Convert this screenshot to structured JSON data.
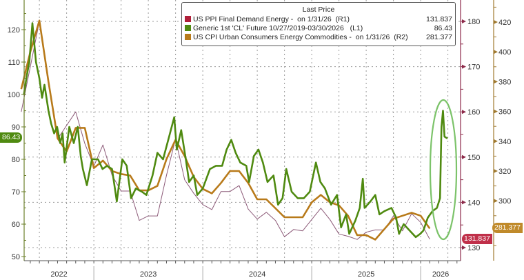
{
  "chart_data": {
    "type": "line",
    "legend": {
      "title": "Last Price",
      "placement": "top-right",
      "entries": [
        {
          "label": "US PPI Final Demand Energy -  on 1/31/26  (R1)",
          "value": "131.837",
          "color": "#b0203a"
        },
        {
          "label": "Generic 1st 'CL' Future 10/27/2019-03/30/2026   (L1)",
          "value": "86.43",
          "color": "#4f8a10"
        },
        {
          "label": "US CPI Urban Consumers Energy Commodities -  on 1/31/26  (R2)",
          "value": "281.377",
          "color": "#b87a1a"
        }
      ]
    },
    "x_axis": {
      "ticks": [
        "2022",
        "2023",
        "2024",
        "2025",
        "2026"
      ],
      "range": [
        "2022-05",
        "2026-04"
      ]
    },
    "axes": {
      "L1": {
        "ticks": [
          50,
          60,
          70,
          80,
          90,
          100,
          110,
          120
        ],
        "range": [
          48,
          127
        ],
        "color": "#6b7f2a"
      },
      "R1": {
        "ticks": [
          130,
          140,
          150,
          160,
          170,
          180
        ],
        "range": [
          127,
          185
        ],
        "color": "#8c2a4a"
      },
      "R2": {
        "ticks": [
          300,
          320,
          340,
          360,
          380,
          400,
          420
        ],
        "range": [
          266,
          440
        ],
        "color": "#a07a30"
      }
    },
    "grid": true,
    "last_value_tags": {
      "L1": "86.43",
      "R1": "131.837",
      "R2": "281.377"
    },
    "series": [
      {
        "name": "Generic 1st 'CL' Future",
        "axis": "L1",
        "color": "#4f8a10",
        "points": [
          [
            "2022-05-10",
            100
          ],
          [
            "2022-05-20",
            106
          ],
          [
            "2022-05-28",
            110
          ],
          [
            "2022-06-08",
            122
          ],
          [
            "2022-06-20",
            110
          ],
          [
            "2022-07-01",
            105
          ],
          [
            "2022-07-10",
            99
          ],
          [
            "2022-07-18",
            103
          ],
          [
            "2022-08-01",
            95
          ],
          [
            "2022-08-10",
            91
          ],
          [
            "2022-08-20",
            88
          ],
          [
            "2022-08-30",
            90
          ],
          [
            "2022-09-10",
            85
          ],
          [
            "2022-09-18",
            88
          ],
          [
            "2022-09-25",
            79
          ],
          [
            "2022-10-10",
            90
          ],
          [
            "2022-10-25",
            85
          ],
          [
            "2022-11-08",
            90
          ],
          [
            "2022-11-18",
            81
          ],
          [
            "2022-11-25",
            77
          ],
          [
            "2022-12-08",
            72
          ],
          [
            "2022-12-25",
            80
          ],
          [
            "2023-01-15",
            80
          ],
          [
            "2023-01-30",
            77
          ],
          [
            "2023-02-15",
            78
          ],
          [
            "2023-03-01",
            77
          ],
          [
            "2023-03-17",
            67
          ],
          [
            "2023-04-05",
            80
          ],
          [
            "2023-04-20",
            78
          ],
          [
            "2023-05-04",
            68
          ],
          [
            "2023-05-20",
            71
          ],
          [
            "2023-06-10",
            70
          ],
          [
            "2023-06-25",
            69
          ],
          [
            "2023-07-15",
            75
          ],
          [
            "2023-08-01",
            82
          ],
          [
            "2023-08-20",
            80
          ],
          [
            "2023-09-10",
            87
          ],
          [
            "2023-09-27",
            93
          ],
          [
            "2023-10-05",
            83
          ],
          [
            "2023-10-20",
            89
          ],
          [
            "2023-11-05",
            80
          ],
          [
            "2023-11-16",
            73
          ],
          [
            "2023-12-01",
            75
          ],
          [
            "2023-12-13",
            69
          ],
          [
            "2024-01-01",
            71
          ],
          [
            "2024-01-25",
            77
          ],
          [
            "2024-02-15",
            78
          ],
          [
            "2024-03-05",
            78
          ],
          [
            "2024-03-20",
            83
          ],
          [
            "2024-04-05",
            86
          ],
          [
            "2024-04-20",
            82
          ],
          [
            "2024-05-05",
            79
          ],
          [
            "2024-05-25",
            78
          ],
          [
            "2024-06-04",
            73
          ],
          [
            "2024-06-20",
            81
          ],
          [
            "2024-07-05",
            83
          ],
          [
            "2024-07-20",
            79
          ],
          [
            "2024-08-05",
            73
          ],
          [
            "2024-08-25",
            75
          ],
          [
            "2024-09-10",
            66
          ],
          [
            "2024-09-25",
            68
          ],
          [
            "2024-10-07",
            77
          ],
          [
            "2024-10-25",
            70
          ],
          [
            "2024-11-15",
            68
          ],
          [
            "2024-12-05",
            68
          ],
          [
            "2024-12-25",
            70
          ],
          [
            "2025-01-15",
            79
          ],
          [
            "2025-01-30",
            73
          ],
          [
            "2025-02-15",
            71
          ],
          [
            "2025-03-05",
            66
          ],
          [
            "2025-03-25",
            69
          ],
          [
            "2025-04-08",
            59
          ],
          [
            "2025-04-25",
            63
          ],
          [
            "2025-05-05",
            57
          ],
          [
            "2025-05-25",
            61
          ],
          [
            "2025-06-10",
            65
          ],
          [
            "2025-06-20",
            74
          ],
          [
            "2025-06-26",
            65
          ],
          [
            "2025-07-15",
            67
          ],
          [
            "2025-08-01",
            69
          ],
          [
            "2025-08-15",
            63
          ],
          [
            "2025-09-01",
            64
          ],
          [
            "2025-09-25",
            65
          ],
          [
            "2025-10-10",
            62
          ],
          [
            "2025-10-20",
            57
          ],
          [
            "2025-11-05",
            60
          ],
          [
            "2025-11-25",
            58
          ],
          [
            "2025-12-15",
            56
          ],
          [
            "2025-12-30",
            57
          ],
          [
            "2026-01-10",
            58
          ],
          [
            "2026-01-25",
            62
          ],
          [
            "2026-02-10",
            64
          ],
          [
            "2026-02-25",
            65
          ],
          [
            "2026-03-05",
            68
          ],
          [
            "2026-03-10",
            90
          ],
          [
            "2026-03-15",
            95
          ],
          [
            "2026-03-20",
            87
          ],
          [
            "2026-03-30",
            86.43
          ]
        ]
      },
      {
        "name": "US CPI Urban Consumers Energy Commodities",
        "axis": "R2",
        "color": "#b87a1a",
        "points": [
          [
            "2022-04",
            375
          ],
          [
            "2022-05",
            400
          ],
          [
            "2022-06",
            421
          ],
          [
            "2022-07",
            380
          ],
          [
            "2022-08",
            342
          ],
          [
            "2022-09",
            333
          ],
          [
            "2022-10",
            349
          ],
          [
            "2022-11",
            349
          ],
          [
            "2022-12",
            322
          ],
          [
            "2023-01",
            327
          ],
          [
            "2023-02",
            320
          ],
          [
            "2023-03",
            318
          ],
          [
            "2023-04",
            317
          ],
          [
            "2023-05",
            307
          ],
          [
            "2023-06",
            307
          ],
          [
            "2023-07",
            310
          ],
          [
            "2023-08",
            328
          ],
          [
            "2023-09",
            341
          ],
          [
            "2023-10",
            330
          ],
          [
            "2023-11",
            316
          ],
          [
            "2023-12",
            308
          ],
          [
            "2024-01",
            305
          ],
          [
            "2024-02",
            312
          ],
          [
            "2024-03",
            320
          ],
          [
            "2024-04",
            320
          ],
          [
            "2024-05",
            312
          ],
          [
            "2024-06",
            301
          ],
          [
            "2024-07",
            301
          ],
          [
            "2024-08",
            295
          ],
          [
            "2024-09",
            289
          ],
          [
            "2024-10",
            289
          ],
          [
            "2024-11",
            289
          ],
          [
            "2024-12",
            299
          ],
          [
            "2025-01",
            304
          ],
          [
            "2025-02",
            299
          ],
          [
            "2025-03",
            297
          ],
          [
            "2025-04",
            290
          ],
          [
            "2025-05",
            277
          ],
          [
            "2025-06",
            277
          ],
          [
            "2025-07",
            274
          ],
          [
            "2025-08",
            281
          ],
          [
            "2025-09",
            288
          ],
          [
            "2025-10",
            290
          ],
          [
            "2025-11",
            292
          ],
          [
            "2025-12",
            290
          ],
          [
            "2026-01",
            281.377
          ]
        ]
      },
      {
        "name": "US PPI Final Demand Energy",
        "axis": "R1",
        "color": "#8c5a78",
        "points": [
          [
            "2022-04",
            160
          ],
          [
            "2022-05",
            170
          ],
          [
            "2022-06",
            180
          ],
          [
            "2022-07",
            166
          ],
          [
            "2022-08",
            154
          ],
          [
            "2022-09",
            157
          ],
          [
            "2022-10",
            160
          ],
          [
            "2022-11",
            153
          ],
          [
            "2022-12",
            148
          ],
          [
            "2023-01",
            152.7
          ],
          [
            "2023-02",
            146
          ],
          [
            "2023-03",
            142.5
          ],
          [
            "2023-04",
            142.5
          ],
          [
            "2023-05",
            136
          ],
          [
            "2023-06",
            137
          ],
          [
            "2023-07",
            137
          ],
          [
            "2023-08",
            146
          ],
          [
            "2023-09",
            154
          ],
          [
            "2023-10",
            145
          ],
          [
            "2023-11",
            142
          ],
          [
            "2023-12",
            139.5
          ],
          [
            "2024-01",
            138.4
          ],
          [
            "2024-02",
            142.4
          ],
          [
            "2024-03",
            142.4
          ],
          [
            "2024-04",
            143.7
          ],
          [
            "2024-05",
            138.5
          ],
          [
            "2024-06",
            136.3
          ],
          [
            "2024-07",
            137.8
          ],
          [
            "2024-08",
            136
          ],
          [
            "2024-09",
            132.4
          ],
          [
            "2024-10",
            134
          ],
          [
            "2024-11",
            133.7
          ],
          [
            "2024-12",
            136.2
          ],
          [
            "2025-01",
            138.7
          ],
          [
            "2025-02",
            136.2
          ],
          [
            "2025-03",
            133
          ],
          [
            "2025-04",
            132.5
          ],
          [
            "2025-05",
            131.8
          ],
          [
            "2025-06",
            133.4
          ],
          [
            "2025-07",
            133.9
          ],
          [
            "2025-08",
            133.9
          ],
          [
            "2025-09",
            137
          ],
          [
            "2025-10",
            133.7
          ],
          [
            "2025-11",
            137.5
          ],
          [
            "2025-12",
            135.6
          ],
          [
            "2026-01",
            131.837
          ]
        ]
      }
    ],
    "annotations": [
      {
        "type": "ellipse",
        "color": "#7cc36a",
        "around": "CL spike 2026-03"
      }
    ]
  }
}
